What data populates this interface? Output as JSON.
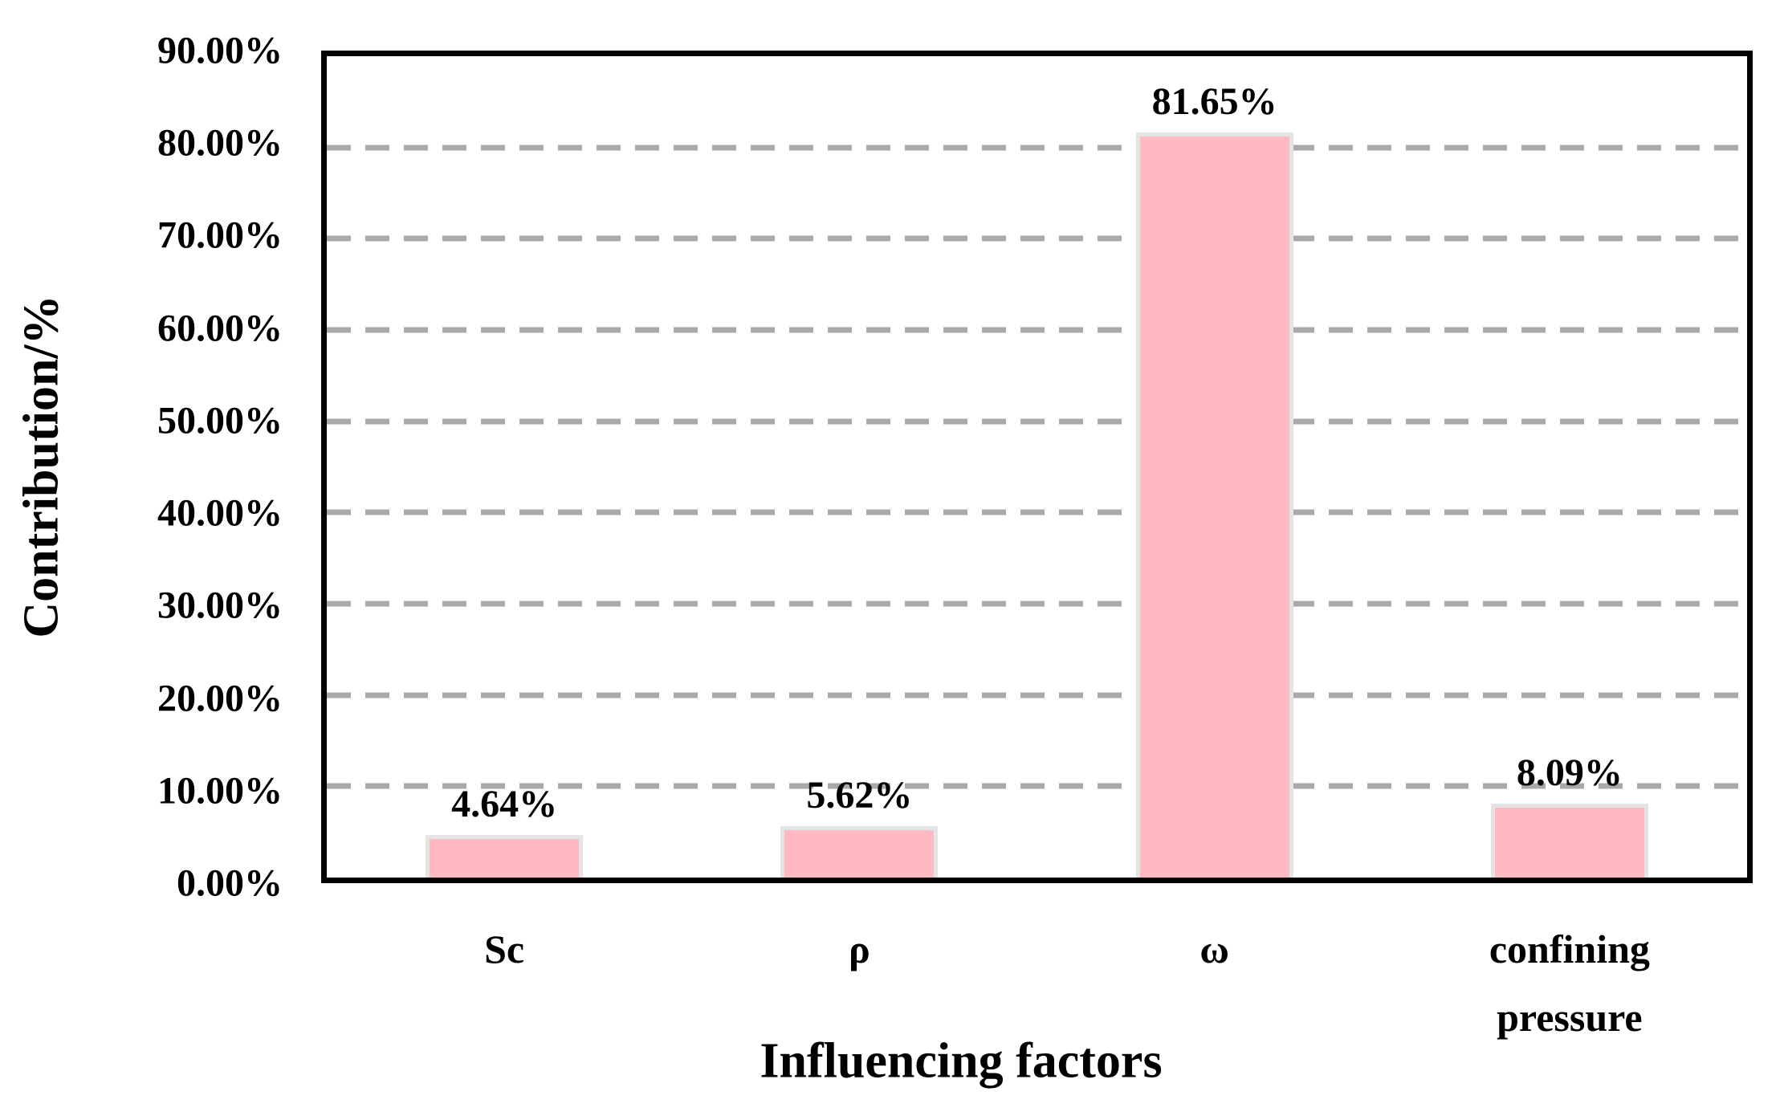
{
  "chart_data": {
    "type": "bar",
    "title": "",
    "xlabel": "Influencing factors",
    "ylabel": "Contribution/%",
    "categories": [
      "Sc",
      "ρ",
      "ω",
      "confining pressure"
    ],
    "values": [
      4.64,
      5.62,
      81.65,
      8.09
    ],
    "data_labels": [
      "4.64%",
      "5.62%",
      "81.65%",
      "8.09%"
    ],
    "ylim": [
      0,
      90
    ],
    "yticks": [
      0,
      10,
      20,
      30,
      40,
      50,
      60,
      70,
      80,
      90
    ],
    "ytick_labels": [
      "0.00%",
      "10.00%",
      "20.00%",
      "30.00%",
      "40.00%",
      "50.00%",
      "60.00%",
      "70.00%",
      "80.00%",
      "90.00%"
    ],
    "grid": "horizontal-dashed",
    "legend": "none",
    "colors": {
      "bar_fill": "#FFB9C3",
      "bar_border": "#E4E4E4",
      "gridline": "#A9A9A9",
      "axis": "#000000",
      "text": "#000000",
      "background": "#FFFFFF"
    }
  }
}
